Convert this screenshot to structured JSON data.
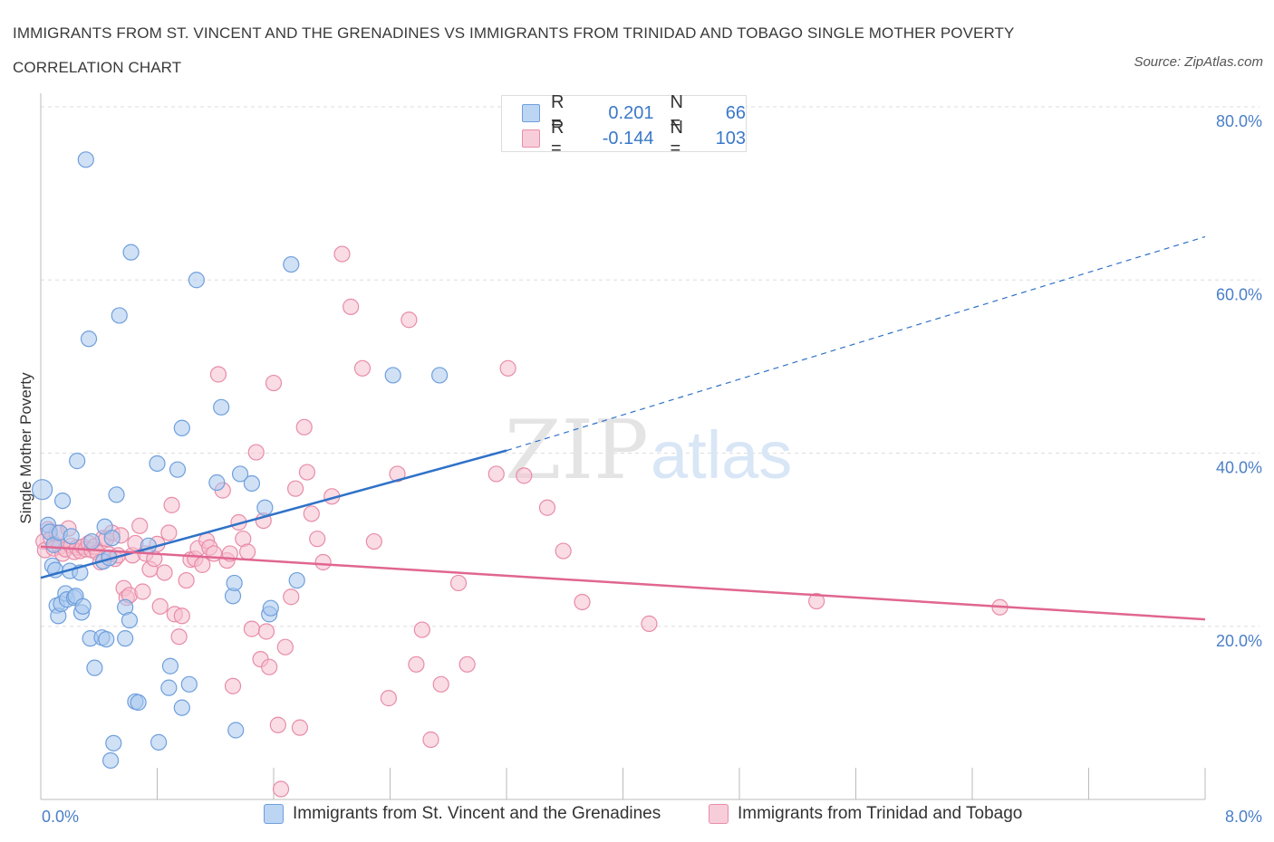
{
  "title": "IMMIGRANTS FROM ST. VINCENT AND THE GRENADINES VS IMMIGRANTS FROM TRINIDAD AND TOBAGO SINGLE MOTHER POVERTY CORRELATION CHART",
  "source": "Source: ZipAtlas.com",
  "watermark": {
    "zip": "ZIP",
    "atlas": "atlas"
  },
  "legend": {
    "series1": {
      "r_label": "R =",
      "r_value": "0.201",
      "n_label": "N =",
      "n_value": "66"
    },
    "series2": {
      "r_label": "R =",
      "r_value": "-0.144",
      "n_label": "N =",
      "n_value": "103"
    }
  },
  "colors": {
    "blue_fill": "#aac8ef",
    "blue_stroke": "#6f9fdc",
    "blue_line": "#2f72c8",
    "pink_fill": "#f6c0d0",
    "pink_stroke": "#e88ca8",
    "pink_line": "#e06690",
    "axis_text": "#4a7fc8",
    "grid": "#dddddd"
  },
  "chart_data": {
    "type": "scatter",
    "title": "IMMIGRANTS FROM ST. VINCENT AND THE GRENADINES VS IMMIGRANTS FROM TRINIDAD AND TOBAGO SINGLE MOTHER POVERTY CORRELATION CHART",
    "ylabel": "Single Mother Poverty",
    "xlim": [
      0,
      8
    ],
    "ylim": [
      0,
      80
    ],
    "x_tick_labels": [
      "0.0%",
      "8.0%"
    ],
    "y_tick_labels": [
      "20.0%",
      "40.0%",
      "60.0%",
      "80.0%"
    ],
    "y_ticks": [
      20,
      40,
      60,
      80
    ],
    "grid": true,
    "legend_position": "top-center",
    "series": [
      {
        "name": "Immigrants from St. Vincent and the Grenadines",
        "color": "blue",
        "points": [
          [
            0.01,
            35.8
          ],
          [
            0.05,
            31.7
          ],
          [
            0.06,
            30.9
          ],
          [
            0.08,
            27.0
          ],
          [
            0.09,
            29.4
          ],
          [
            0.1,
            26.5
          ],
          [
            0.11,
            22.4
          ],
          [
            0.12,
            21.2
          ],
          [
            0.13,
            30.8
          ],
          [
            0.14,
            22.6
          ],
          [
            0.15,
            34.5
          ],
          [
            0.17,
            23.8
          ],
          [
            0.18,
            23.1
          ],
          [
            0.2,
            26.4
          ],
          [
            0.21,
            30.4
          ],
          [
            0.23,
            23.3
          ],
          [
            0.24,
            23.5
          ],
          [
            0.25,
            39.1
          ],
          [
            0.27,
            26.2
          ],
          [
            0.28,
            21.6
          ],
          [
            0.29,
            22.3
          ],
          [
            0.31,
            73.9
          ],
          [
            0.33,
            53.2
          ],
          [
            0.34,
            18.6
          ],
          [
            0.35,
            29.8
          ],
          [
            0.37,
            15.2
          ],
          [
            0.42,
            18.7
          ],
          [
            0.43,
            27.5
          ],
          [
            0.44,
            31.5
          ],
          [
            0.45,
            18.5
          ],
          [
            0.49,
            30.2
          ],
          [
            0.5,
            6.5
          ],
          [
            0.52,
            35.2
          ],
          [
            0.54,
            55.9
          ],
          [
            0.58,
            18.6
          ],
          [
            0.58,
            22.2
          ],
          [
            0.61,
            20.7
          ],
          [
            0.62,
            63.2
          ],
          [
            0.65,
            11.3
          ],
          [
            0.67,
            11.2
          ],
          [
            0.74,
            29.3
          ],
          [
            0.8,
            38.8
          ],
          [
            0.81,
            6.6
          ],
          [
            0.88,
            12.9
          ],
          [
            0.89,
            15.4
          ],
          [
            0.94,
            38.1
          ],
          [
            0.97,
            10.6
          ],
          [
            0.97,
            42.9
          ],
          [
            1.02,
            13.3
          ],
          [
            1.07,
            60.0
          ],
          [
            1.21,
            36.6
          ],
          [
            1.24,
            45.3
          ],
          [
            1.32,
            23.5
          ],
          [
            1.33,
            25.0
          ],
          [
            1.34,
            8.0
          ],
          [
            1.37,
            37.6
          ],
          [
            1.45,
            36.5
          ],
          [
            1.54,
            33.7
          ],
          [
            1.57,
            21.4
          ],
          [
            1.58,
            22.1
          ],
          [
            1.72,
            61.8
          ],
          [
            1.76,
            25.3
          ],
          [
            2.42,
            49.0
          ],
          [
            2.74,
            49.0
          ],
          [
            0.48,
            4.5
          ],
          [
            0.47,
            27.9
          ]
        ]
      },
      {
        "name": "Immigrants from Trinidad and Tobago",
        "color": "pink",
        "points": [
          [
            0.02,
            29.8
          ],
          [
            0.03,
            28.8
          ],
          [
            0.05,
            31.2
          ],
          [
            0.07,
            30.1
          ],
          [
            0.09,
            29.0
          ],
          [
            0.11,
            30.8
          ],
          [
            0.13,
            29.2
          ],
          [
            0.15,
            28.4
          ],
          [
            0.17,
            28.9
          ],
          [
            0.19,
            31.3
          ],
          [
            0.21,
            29.3
          ],
          [
            0.23,
            28.6
          ],
          [
            0.25,
            29.1
          ],
          [
            0.27,
            28.7
          ],
          [
            0.29,
            29.2
          ],
          [
            0.31,
            28.9
          ],
          [
            0.33,
            29.6
          ],
          [
            0.35,
            28.8
          ],
          [
            0.37,
            29.2
          ],
          [
            0.39,
            28.5
          ],
          [
            0.41,
            27.4
          ],
          [
            0.43,
            30.2
          ],
          [
            0.45,
            30.1
          ],
          [
            0.47,
            28.3
          ],
          [
            0.49,
            30.8
          ],
          [
            0.51,
            27.8
          ],
          [
            0.53,
            28.2
          ],
          [
            0.55,
            30.5
          ],
          [
            0.57,
            24.4
          ],
          [
            0.59,
            23.3
          ],
          [
            0.61,
            23.6
          ],
          [
            0.63,
            28.2
          ],
          [
            0.65,
            29.6
          ],
          [
            0.68,
            31.6
          ],
          [
            0.7,
            24.0
          ],
          [
            0.72,
            28.4
          ],
          [
            0.75,
            26.6
          ],
          [
            0.78,
            27.8
          ],
          [
            0.8,
            29.5
          ],
          [
            0.82,
            22.3
          ],
          [
            0.85,
            26.2
          ],
          [
            0.88,
            30.8
          ],
          [
            0.9,
            34.0
          ],
          [
            0.92,
            21.4
          ],
          [
            0.95,
            18.8
          ],
          [
            0.97,
            21.2
          ],
          [
            1.0,
            25.3
          ],
          [
            1.03,
            27.7
          ],
          [
            1.06,
            27.8
          ],
          [
            1.08,
            29.0
          ],
          [
            1.11,
            27.1
          ],
          [
            1.14,
            29.9
          ],
          [
            1.16,
            29.1
          ],
          [
            1.19,
            28.4
          ],
          [
            1.22,
            49.1
          ],
          [
            1.25,
            35.7
          ],
          [
            1.28,
            27.6
          ],
          [
            1.3,
            28.4
          ],
          [
            1.32,
            13.1
          ],
          [
            1.36,
            32.0
          ],
          [
            1.39,
            30.1
          ],
          [
            1.42,
            28.6
          ],
          [
            1.45,
            19.7
          ],
          [
            1.48,
            40.1
          ],
          [
            1.51,
            16.2
          ],
          [
            1.53,
            32.2
          ],
          [
            1.55,
            19.4
          ],
          [
            1.57,
            15.3
          ],
          [
            1.6,
            48.1
          ],
          [
            1.63,
            8.6
          ],
          [
            1.65,
            1.2
          ],
          [
            1.68,
            17.6
          ],
          [
            1.72,
            23.4
          ],
          [
            1.75,
            35.9
          ],
          [
            1.78,
            8.3
          ],
          [
            1.81,
            43.0
          ],
          [
            1.83,
            37.8
          ],
          [
            1.86,
            33.0
          ],
          [
            1.9,
            30.1
          ],
          [
            1.94,
            27.4
          ],
          [
            2.0,
            35.0
          ],
          [
            2.07,
            63.0
          ],
          [
            2.13,
            56.9
          ],
          [
            2.21,
            49.8
          ],
          [
            2.29,
            29.8
          ],
          [
            2.39,
            11.7
          ],
          [
            2.45,
            37.6
          ],
          [
            2.53,
            55.4
          ],
          [
            2.58,
            15.6
          ],
          [
            2.62,
            19.6
          ],
          [
            2.68,
            6.9
          ],
          [
            2.75,
            13.3
          ],
          [
            2.87,
            25.0
          ],
          [
            2.93,
            15.6
          ],
          [
            3.13,
            37.6
          ],
          [
            3.21,
            49.8
          ],
          [
            3.32,
            37.4
          ],
          [
            3.48,
            33.7
          ],
          [
            3.59,
            28.7
          ],
          [
            3.72,
            22.8
          ],
          [
            4.18,
            20.3
          ],
          [
            5.33,
            22.9
          ],
          [
            6.59,
            22.2
          ]
        ]
      }
    ],
    "trend_lines": [
      {
        "series": "Immigrants from St. Vincent and the Grenadines",
        "x0": 0.0,
        "y0": 25.6,
        "x1": 3.2,
        "y1": 40.3,
        "dashed_to_x": 8.0,
        "dashed_to_y": 65.0
      },
      {
        "series": "Immigrants from Trinidad and Tobago",
        "x0": 0.0,
        "y0": 29.2,
        "x1": 8.0,
        "y1": 20.8
      }
    ]
  },
  "bottom_legend": [
    {
      "label": "Immigrants from St. Vincent and the Grenadines",
      "color": "blue"
    },
    {
      "label": "Immigrants from Trinidad and Tobago",
      "color": "pink"
    }
  ]
}
